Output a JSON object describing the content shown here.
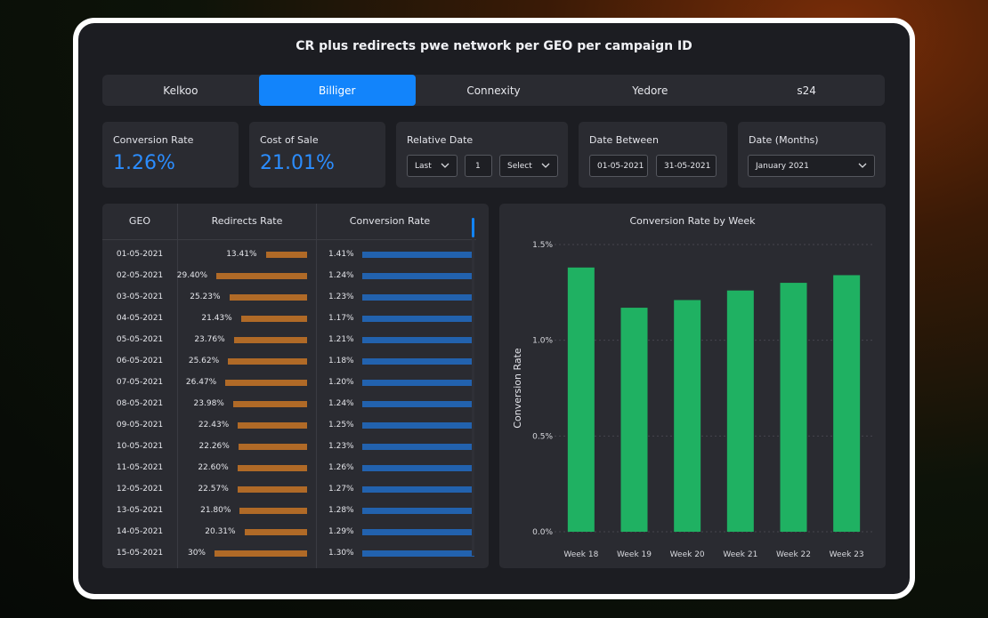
{
  "title": "CR plus redirects pwe network per GEO per campaign ID",
  "tabs": [
    {
      "label": "Kelkoo",
      "active": false
    },
    {
      "label": "Billiger",
      "active": true
    },
    {
      "label": "Connexity",
      "active": false
    },
    {
      "label": "Yedore",
      "active": false
    },
    {
      "label": "s24",
      "active": false
    }
  ],
  "kpis": {
    "conversion_rate": {
      "label": "Conversion Rate",
      "value": "1.26%"
    },
    "cost_of_sale": {
      "label": "Cost of Sale",
      "value": "21.01%"
    }
  },
  "filters": {
    "relative_date": {
      "label": "Relative Date",
      "mode": "Last",
      "count": "1",
      "unit": "Select"
    },
    "date_between": {
      "label": "Date Between",
      "start": "01-05-2021",
      "end": "31-05-2021"
    },
    "date_months": {
      "label": "Date (Months)",
      "value": "January 2021"
    }
  },
  "table": {
    "columns": [
      "GEO",
      "Redirects Rate",
      "Conversion Rate"
    ],
    "rows": [
      {
        "geo": "01-05-2021",
        "redirects": "13.41%",
        "redirects_value": 13.41,
        "cr": "1.41%",
        "cr_value": 1.41
      },
      {
        "geo": "02-05-2021",
        "redirects": "29.40%",
        "redirects_value": 29.4,
        "cr": "1.24%",
        "cr_value": 1.24
      },
      {
        "geo": "03-05-2021",
        "redirects": "25.23%",
        "redirects_value": 25.23,
        "cr": "1.23%",
        "cr_value": 1.23
      },
      {
        "geo": "04-05-2021",
        "redirects": "21.43%",
        "redirects_value": 21.43,
        "cr": "1.17%",
        "cr_value": 1.17
      },
      {
        "geo": "05-05-2021",
        "redirects": "23.76%",
        "redirects_value": 23.76,
        "cr": "1.21%",
        "cr_value": 1.21
      },
      {
        "geo": "06-05-2021",
        "redirects": "25.62%",
        "redirects_value": 25.62,
        "cr": "1.18%",
        "cr_value": 1.18
      },
      {
        "geo": "07-05-2021",
        "redirects": "26.47%",
        "redirects_value": 26.47,
        "cr": "1.20%",
        "cr_value": 1.2
      },
      {
        "geo": "08-05-2021",
        "redirects": "23.98%",
        "redirects_value": 23.98,
        "cr": "1.24%",
        "cr_value": 1.24
      },
      {
        "geo": "09-05-2021",
        "redirects": "22.43%",
        "redirects_value": 22.43,
        "cr": "1.25%",
        "cr_value": 1.25
      },
      {
        "geo": "10-05-2021",
        "redirects": "22.26%",
        "redirects_value": 22.26,
        "cr": "1.23%",
        "cr_value": 1.23
      },
      {
        "geo": "11-05-2021",
        "redirects": "22.60%",
        "redirects_value": 22.6,
        "cr": "1.26%",
        "cr_value": 1.26
      },
      {
        "geo": "12-05-2021",
        "redirects": "22.57%",
        "redirects_value": 22.57,
        "cr": "1.27%",
        "cr_value": 1.27
      },
      {
        "geo": "13-05-2021",
        "redirects": "21.80%",
        "redirects_value": 21.8,
        "cr": "1.28%",
        "cr_value": 1.28
      },
      {
        "geo": "14-05-2021",
        "redirects": "20.31%",
        "redirects_value": 20.31,
        "cr": "1.29%",
        "cr_value": 1.29
      },
      {
        "geo": "15-05-2021",
        "redirects": "30%",
        "redirects_value": 30,
        "cr": "1.30%",
        "cr_value": 1.3
      }
    ]
  },
  "colors": {
    "accent": "#1284fb",
    "redirects_bar": "#b06a27",
    "conversion_bar": "#2262ae",
    "chart_bar": "#1fb162"
  },
  "chart_data": {
    "type": "bar",
    "title": "Conversion Rate by Week",
    "xlabel": "",
    "ylabel": "Conversion Rate",
    "categories": [
      "Week 18",
      "Week 19",
      "Week 20",
      "Week 21",
      "Week 22",
      "Week 23"
    ],
    "values": [
      1.38,
      1.17,
      1.21,
      1.26,
      1.3,
      1.34
    ],
    "ylim": [
      0,
      1.5
    ],
    "yticks": [
      "0.0%",
      "0.5%",
      "1.0%",
      "1.5%"
    ],
    "grid": true
  }
}
